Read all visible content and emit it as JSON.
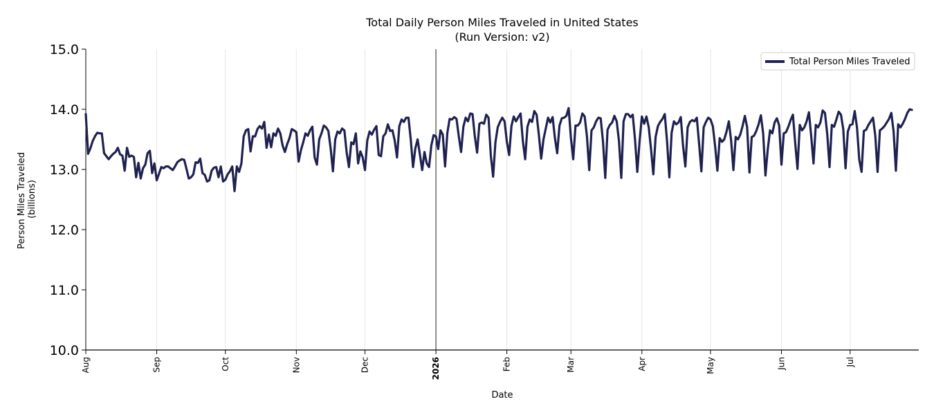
{
  "chart_data": {
    "type": "line",
    "title": "Total Daily Person Miles Traveled in United States",
    "subtitle": "(Run Version: v2)",
    "xlabel": "Date",
    "ylabel_line1": "Person Miles Traveled",
    "ylabel_line2": "(billions)",
    "ylim": [
      10.0,
      15.0
    ],
    "yticks": [
      "10.0",
      "11.0",
      "12.0",
      "13.0",
      "14.0",
      "15.0"
    ],
    "x_start": "2025-08-01",
    "x_end": "2026-07-31",
    "xticks": [
      {
        "date": "2025-08-01",
        "label": "Aug",
        "bold": false
      },
      {
        "date": "2025-09-01",
        "label": "Sep",
        "bold": false
      },
      {
        "date": "2025-10-01",
        "label": "Oct",
        "bold": false
      },
      {
        "date": "2025-11-01",
        "label": "Nov",
        "bold": false
      },
      {
        "date": "2025-12-01",
        "label": "Dec",
        "bold": false
      },
      {
        "date": "2026-01-01",
        "label": "2026",
        "bold": true
      },
      {
        "date": "2026-02-01",
        "label": "Feb",
        "bold": false
      },
      {
        "date": "2026-03-01",
        "label": "Mar",
        "bold": false
      },
      {
        "date": "2026-04-01",
        "label": "Apr",
        "bold": false
      },
      {
        "date": "2026-05-01",
        "label": "May",
        "bold": false
      },
      {
        "date": "2026-06-01",
        "label": "Jun",
        "bold": false
      },
      {
        "date": "2026-07-01",
        "label": "Jul",
        "bold": false
      }
    ],
    "vline_date": "2026-01-01",
    "grid": "vertical",
    "legend_position": "top-right",
    "series": [
      {
        "name": "Total Person Miles Traveled",
        "color": "#1f2150",
        "values": [
          13.92,
          13.26,
          13.35,
          13.47,
          13.55,
          13.61,
          13.6,
          13.6,
          13.27,
          13.22,
          13.17,
          13.22,
          13.26,
          13.29,
          13.36,
          13.25,
          13.23,
          12.98,
          13.36,
          13.21,
          13.23,
          13.21,
          12.87,
          13.11,
          12.85,
          13.02,
          13.08,
          13.27,
          13.31,
          12.94,
          13.1,
          12.82,
          12.93,
          13.04,
          13.02,
          13.05,
          13.05,
          13.02,
          12.99,
          13.05,
          13.12,
          13.15,
          13.17,
          13.16,
          13.01,
          12.85,
          12.87,
          12.92,
          13.12,
          13.11,
          13.18,
          12.94,
          12.91,
          12.8,
          12.82,
          12.98,
          13.03,
          13.04,
          12.87,
          13.05,
          12.8,
          12.83,
          12.92,
          12.97,
          13.05,
          12.64,
          13.05,
          12.96,
          13.1,
          13.55,
          13.65,
          13.67,
          13.3,
          13.55,
          13.55,
          13.67,
          13.72,
          13.68,
          13.79,
          13.36,
          13.58,
          13.37,
          13.6,
          13.56,
          13.68,
          13.6,
          13.4,
          13.29,
          13.42,
          13.52,
          13.67,
          13.65,
          13.62,
          13.13,
          13.32,
          13.45,
          13.6,
          13.56,
          13.65,
          13.71,
          13.2,
          13.08,
          13.5,
          13.6,
          13.73,
          13.7,
          13.64,
          13.35,
          12.97,
          13.5,
          13.63,
          13.6,
          13.68,
          13.65,
          13.28,
          13.04,
          13.45,
          13.42,
          13.6,
          13.1,
          13.3,
          13.2,
          12.99,
          13.48,
          13.63,
          13.58,
          13.66,
          13.72,
          13.24,
          13.22,
          13.55,
          13.6,
          13.75,
          13.64,
          13.65,
          13.48,
          13.2,
          13.72,
          13.83,
          13.79,
          13.86,
          13.86,
          13.5,
          13.04,
          13.35,
          13.5,
          13.25,
          12.99,
          13.29,
          13.1,
          13.04,
          13.4,
          13.57,
          13.55,
          13.34,
          13.65,
          13.58,
          13.05,
          13.61,
          13.84,
          13.83,
          13.87,
          13.84,
          13.55,
          13.29,
          13.71,
          13.86,
          13.8,
          13.93,
          13.92,
          13.55,
          13.28,
          13.76,
          13.78,
          13.76,
          13.91,
          13.86,
          13.23,
          12.88,
          13.45,
          13.7,
          13.79,
          13.86,
          13.8,
          13.46,
          13.24,
          13.72,
          13.88,
          13.8,
          13.87,
          13.93,
          13.47,
          13.17,
          13.71,
          13.83,
          13.79,
          13.97,
          13.91,
          13.57,
          13.18,
          13.5,
          13.68,
          13.86,
          13.78,
          13.87,
          13.52,
          13.27,
          13.73,
          13.85,
          13.86,
          13.89,
          14.02,
          13.52,
          13.17,
          13.73,
          13.73,
          13.78,
          13.93,
          13.88,
          13.55,
          12.99,
          13.65,
          13.7,
          13.8,
          13.86,
          13.85,
          13.47,
          12.86,
          13.66,
          13.74,
          13.78,
          13.89,
          13.8,
          13.47,
          12.86,
          13.8,
          13.92,
          13.92,
          13.87,
          13.91,
          13.5,
          12.96,
          13.47,
          13.88,
          13.76,
          13.88,
          13.7,
          13.34,
          12.92,
          13.54,
          13.72,
          13.79,
          13.84,
          13.92,
          13.47,
          12.87,
          13.61,
          13.8,
          13.75,
          13.78,
          13.87,
          13.39,
          13.05,
          13.7,
          13.79,
          13.82,
          13.8,
          13.86,
          13.43,
          12.97,
          13.7,
          13.79,
          13.86,
          13.83,
          13.72,
          13.39,
          12.98,
          13.52,
          13.46,
          13.5,
          13.63,
          13.8,
          13.48,
          12.99,
          13.54,
          13.5,
          13.58,
          13.72,
          13.89,
          13.7,
          12.95,
          13.54,
          13.56,
          13.64,
          13.75,
          13.9,
          13.6,
          12.9,
          13.33,
          13.65,
          13.6,
          13.78,
          13.85,
          13.73,
          13.08,
          13.6,
          13.62,
          13.71,
          13.82,
          13.91,
          13.44,
          13.01,
          13.74,
          13.65,
          13.7,
          13.8,
          13.95,
          13.55,
          13.1,
          13.74,
          13.7,
          13.78,
          13.98,
          13.94,
          13.59,
          13.04,
          13.74,
          13.71,
          13.83,
          13.96,
          13.91,
          13.67,
          13.02,
          13.63,
          13.74,
          13.75,
          13.97,
          13.7,
          13.16,
          12.96,
          13.64,
          13.66,
          13.74,
          13.8,
          13.86,
          13.56,
          12.96,
          13.65,
          13.68,
          13.72,
          13.78,
          13.84,
          13.94,
          13.63,
          12.98,
          13.75,
          13.7,
          13.76,
          13.84,
          13.94,
          14.0,
          13.99
        ]
      }
    ]
  }
}
